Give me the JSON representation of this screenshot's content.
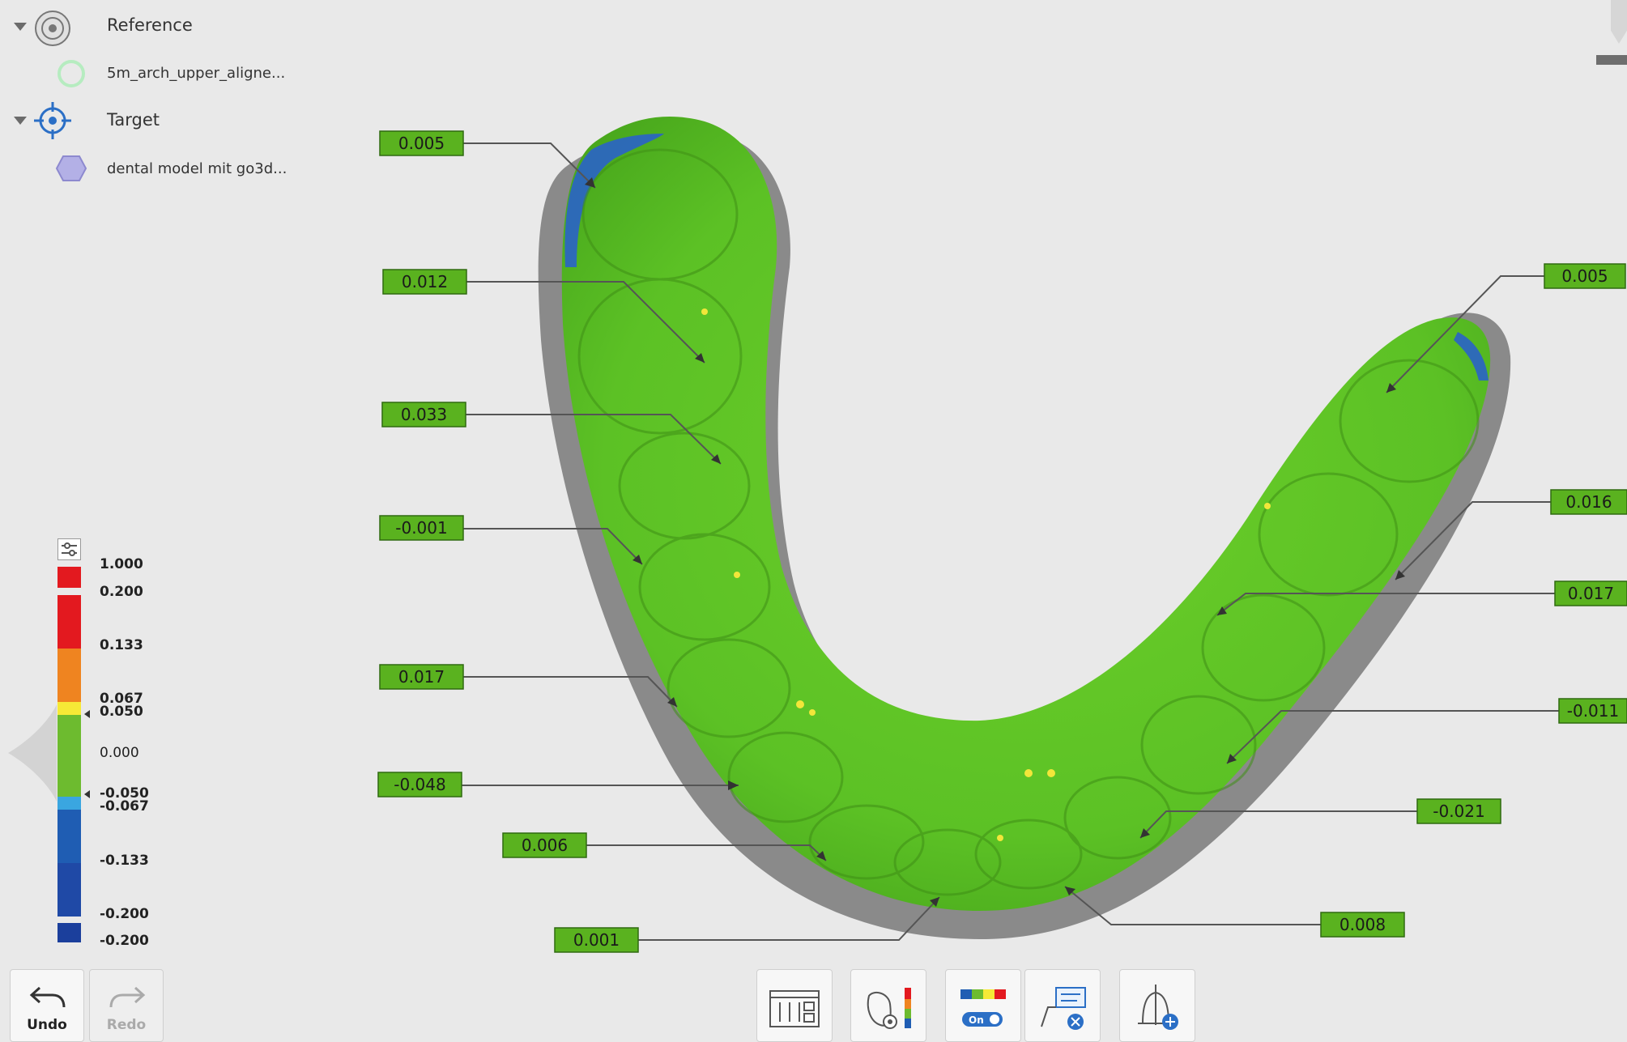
{
  "tree": {
    "reference_label": "Reference",
    "reference_item": "5m_arch_upper_aligne...",
    "target_label": "Target",
    "target_item": "dental model mit go3d..."
  },
  "annotations": [
    {
      "value": "0.005"
    },
    {
      "value": "0.012"
    },
    {
      "value": "0.033"
    },
    {
      "value": "-0.001"
    },
    {
      "value": "0.017"
    },
    {
      "value": "-0.048"
    },
    {
      "value": "0.006"
    },
    {
      "value": "0.001"
    },
    {
      "value": "0.005"
    },
    {
      "value": "0.016"
    },
    {
      "value": "0.017"
    },
    {
      "value": "-0.011"
    },
    {
      "value": "-0.021"
    },
    {
      "value": "0.008"
    }
  ],
  "legend": {
    "labels": [
      "1.000",
      "0.200",
      "0.133",
      "0.067",
      "0.050",
      "0.000",
      "-0.050",
      "-0.067",
      "-0.133",
      "-0.200",
      "-0.200"
    ],
    "colors": {
      "red": "#e3191f",
      "orange": "#ef8420",
      "yellow": "#f6e936",
      "green": "#6dbb2f",
      "light_blue": "#3aa6e0",
      "blue": "#1f5db3",
      "dark_blue": "#1b3f9c"
    }
  },
  "toolbar": {
    "undo_label": "Undo",
    "redo_label": "Redo"
  },
  "colors": {
    "model_green": "#5cc125",
    "label_bg": "#5ab21f",
    "base_gray": "#8a8a8a",
    "accent_blue": "#2b6fc6"
  }
}
